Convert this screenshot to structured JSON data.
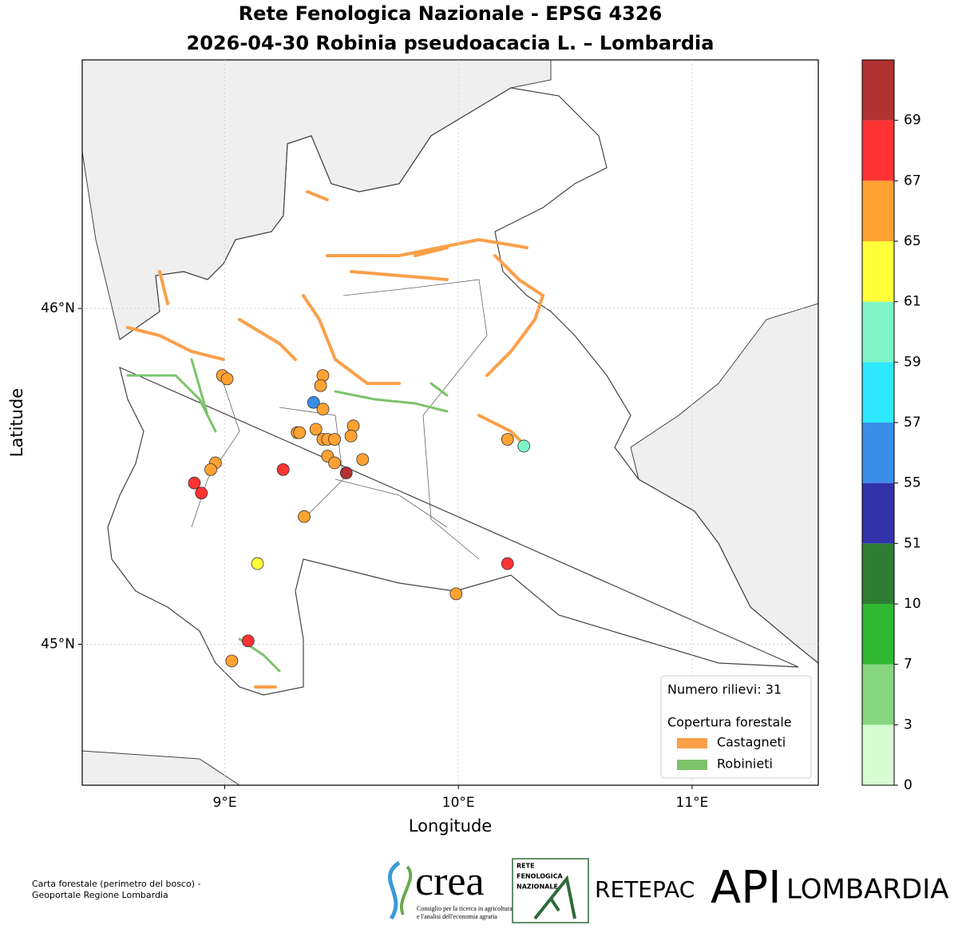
{
  "chart_data": {
    "type": "scatter",
    "title": "Rete Fenologica Nazionale - EPSG 4326",
    "subtitle": "2026-04-30 Robinia pseudoacacia L. – Lombardia",
    "x_label": "Longitude",
    "y_label": "Latitude",
    "xlim": [
      8.39,
      11.54
    ],
    "ylim": [
      44.58,
      46.74
    ],
    "xticks": [
      {
        "value": 9,
        "label": "9°E"
      },
      {
        "value": 10,
        "label": "10°E"
      },
      {
        "value": 11,
        "label": "11°E"
      }
    ],
    "yticks": [
      {
        "value": 45,
        "label": "45°N"
      },
      {
        "value": 46,
        "label": "46°N"
      }
    ],
    "grid": true,
    "x": [
      8.99,
      9.01,
      9.42,
      9.41,
      9.38,
      9.42,
      9.39,
      9.31,
      9.32,
      9.55,
      9.54,
      9.42,
      9.44,
      9.47,
      9.44,
      9.47,
      9.59,
      9.52,
      9.25,
      8.96,
      8.94,
      8.87,
      8.9,
      9.34,
      10.21,
      10.28,
      10.21,
      9.99,
      9.14,
      9.1,
      9.03
    ],
    "y": [
      45.8,
      45.79,
      45.8,
      45.77,
      45.72,
      45.7,
      45.64,
      45.63,
      45.63,
      45.65,
      45.62,
      45.61,
      45.61,
      45.61,
      45.56,
      45.54,
      45.55,
      45.51,
      45.52,
      45.54,
      45.52,
      45.48,
      45.45,
      45.38,
      45.61,
      45.59,
      45.24,
      45.15,
      45.24,
      45.01,
      44.95
    ],
    "values": [
      66,
      66,
      66,
      66,
      56,
      66,
      66,
      66,
      66,
      66,
      66,
      66,
      66,
      66,
      66,
      66,
      66,
      70,
      68,
      66,
      66,
      68,
      68,
      66,
      66,
      60,
      68,
      66,
      63,
      68,
      66
    ],
    "colorbar": {
      "ticks": [
        0,
        3,
        7,
        10,
        51,
        55,
        57,
        59,
        61,
        65,
        67,
        69
      ],
      "colors": [
        "#d8fcd2",
        "#86d67f",
        "#31b832",
        "#2e7d32",
        "#3232aa",
        "#3a8ee8",
        "#2ee8ff",
        "#80f5c8",
        "#ffff3a",
        "#ffa232",
        "#ff3333",
        "#b03232"
      ]
    },
    "legend": {
      "count_label": "Numero rilievi: 31",
      "title": "Copertura forestale",
      "position": "lower right",
      "entries": [
        {
          "name": "Castagneti",
          "color": "#f9a04a"
        },
        {
          "name": "Robinieti",
          "color": "#7cc36b"
        }
      ]
    }
  },
  "footer": {
    "credit_lines": [
      "Carta forestale (perimetro del bosco) -",
      "Geoportale Regione Lombardia"
    ],
    "logos": {
      "crea": "crea",
      "crea_caption": [
        "Consiglio per la ricerca in agricoltura",
        "e l'analisi dell'economia agraria"
      ],
      "rfn": [
        "RETE",
        "FENOLOGICA",
        "NAZIONALE"
      ],
      "retepac": "RETEPAC",
      "api": "API",
      "lombardia": "LOMBARDIA"
    }
  }
}
